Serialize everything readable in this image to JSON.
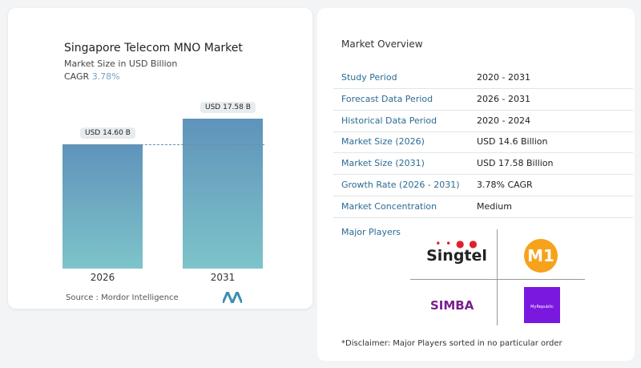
{
  "chart_data": {
    "type": "bar",
    "title": "Singapore Telecom MNO Market",
    "subtitle": "Market Size in USD Billion",
    "cagr_label": "CAGR",
    "cagr": "3.78%",
    "categories": [
      "2026",
      "2031"
    ],
    "values": [
      14.6,
      17.58
    ],
    "data_labels": [
      "USD 14.60 B",
      "USD 17.58 B"
    ],
    "bar_color": "#5f93bb",
    "reference_line": 14.6,
    "source": "Source :  Mordor Intelligence"
  },
  "overview": {
    "title": "Market Overview",
    "rows": [
      {
        "k": "Study Period",
        "v": "2020 - 2031"
      },
      {
        "k": "Forecast Data Period",
        "v": "2026 - 2031"
      },
      {
        "k": "Historical Data Period",
        "v": "2020 - 2024"
      },
      {
        "k": "Market Size (2026)",
        "v": "USD 14.6 Billion"
      },
      {
        "k": "Market Size (2031)",
        "v": "USD 17.58 Billion"
      },
      {
        "k": "Growth Rate (2026 - 2031)",
        "v": "3.78% CAGR"
      },
      {
        "k": "Market Concentration",
        "v": "Medium"
      }
    ],
    "players_title": "Major Players",
    "players": [
      "Singtel",
      "M1",
      "SIMBA",
      "MyRepublic"
    ],
    "disclaimer": "*Disclaimer: Major Players sorted in no particular order"
  }
}
